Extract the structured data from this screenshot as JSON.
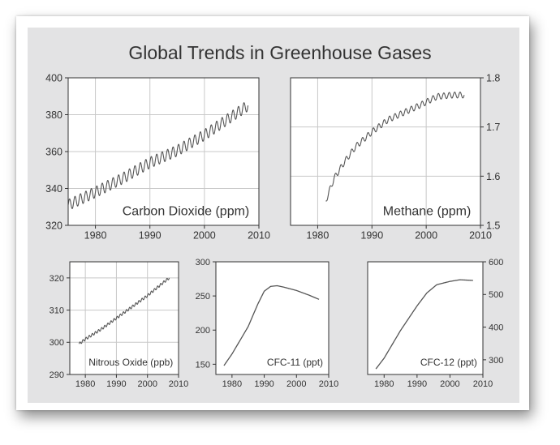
{
  "figure": {
    "title": "Global Trends in Greenhouse Gases",
    "colors": {
      "background": "#e3e3e4",
      "plot_area": "#ffffff",
      "line": "#555555",
      "grid": "#c8c8c8"
    }
  },
  "chart_data": [
    {
      "id": "co2",
      "type": "line",
      "title": "Carbon Dioxide (ppm)",
      "xlim": [
        1975,
        2010
      ],
      "ylim": [
        320,
        400
      ],
      "xticks": [
        1980,
        1990,
        2000,
        2010
      ],
      "yticks": [
        320,
        340,
        360,
        380,
        400
      ],
      "y_axis_side": "left",
      "grid": true,
      "seasonal_amplitude": 3,
      "series": [
        {
          "x": [
            1975,
            1980,
            1985,
            1990,
            1995,
            2000,
            2005,
            2008
          ],
          "y": [
            331,
            338,
            345.5,
            354,
            360.5,
            369,
            379,
            385
          ]
        }
      ]
    },
    {
      "id": "ch4",
      "type": "line",
      "title": "Methane (ppm)",
      "xlim": [
        1975,
        2010
      ],
      "ylim": [
        1.5,
        1.8
      ],
      "xticks": [
        1980,
        1990,
        2000,
        2010
      ],
      "yticks": [
        1.5,
        1.6,
        1.7,
        1.8
      ],
      "y_axis_side": "right",
      "grid": true,
      "seasonal_amplitude": 0.006,
      "series": [
        {
          "x": [
            1981.5,
            1983,
            1985,
            1987,
            1990,
            1993,
            1996,
            1999,
            2002,
            2005,
            2007
          ],
          "y": [
            1.55,
            1.595,
            1.63,
            1.66,
            1.69,
            1.715,
            1.73,
            1.745,
            1.762,
            1.765,
            1.765
          ]
        }
      ]
    },
    {
      "id": "n2o",
      "type": "line",
      "title": "Nitrous Oxide (ppb)",
      "xlim": [
        1975,
        2010
      ],
      "ylim": [
        290,
        325
      ],
      "xticks": [
        1980,
        1990,
        2000,
        2010
      ],
      "yticks": [
        290,
        300,
        310,
        320
      ],
      "y_axis_side": "left",
      "grid": true,
      "seasonal_amplitude": 0.4,
      "series": [
        {
          "x": [
            1978,
            1980,
            1985,
            1990,
            1995,
            2000,
            2005,
            2007
          ],
          "y": [
            299.5,
            301,
            304,
            307.5,
            311,
            314.5,
            318.5,
            320
          ]
        }
      ]
    },
    {
      "id": "cfc11",
      "type": "line",
      "title": "CFC-11 (ppt)",
      "xlim": [
        1975,
        2010
      ],
      "ylim": [
        135,
        300
      ],
      "xticks": [
        1980,
        1990,
        2000,
        2010
      ],
      "yticks": [
        150,
        200,
        250,
        300
      ],
      "y_axis_side": "left",
      "grid": false,
      "seasonal_amplitude": 0,
      "series": [
        {
          "x": [
            1977.5,
            1980,
            1985,
            1988,
            1990,
            1992,
            1994,
            1996,
            2000,
            2004,
            2007
          ],
          "y": [
            148,
            165,
            205,
            238,
            257,
            264,
            265,
            263,
            258,
            251,
            245
          ]
        }
      ]
    },
    {
      "id": "cfc12",
      "type": "line",
      "title": "CFC-12 (ppt)",
      "xlim": [
        1975,
        2010
      ],
      "ylim": [
        255,
        600
      ],
      "xticks": [
        1980,
        1990,
        2000,
        2010
      ],
      "yticks": [
        300,
        400,
        500,
        600
      ],
      "y_axis_side": "right",
      "grid": false,
      "seasonal_amplitude": 0,
      "series": [
        {
          "x": [
            1977.5,
            1980,
            1985,
            1990,
            1993,
            1996,
            2000,
            2003,
            2007
          ],
          "y": [
            272,
            305,
            390,
            465,
            505,
            530,
            540,
            545,
            543
          ]
        }
      ]
    }
  ]
}
